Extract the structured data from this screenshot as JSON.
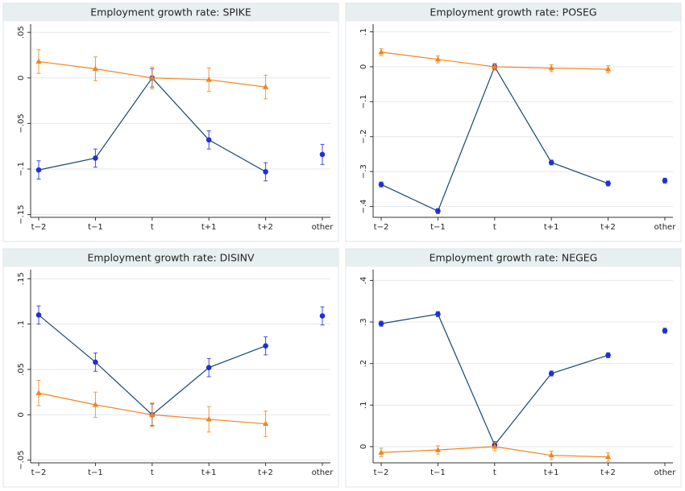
{
  "chart_data": [
    {
      "type": "line",
      "title": "Employment growth rate: SPIKE",
      "categories": [
        "t−2",
        "t−1",
        "t",
        "t+1",
        "t+2",
        "other"
      ],
      "ylim": [
        -0.153,
        0.059
      ],
      "yticks": [
        {
          "value": 0.05,
          "label": ".05"
        },
        0,
        {
          "value": -0.05,
          "label": "−.05"
        },
        {
          "value": -0.1,
          "label": "−.1"
        },
        {
          "value": -0.15,
          "label": "−.15"
        }
      ],
      "grid": true,
      "series": [
        {
          "color": "#1f2fd6",
          "line_color": "#1a476f",
          "marker": "circle",
          "line_gap_before": 5,
          "values": [
            -0.101,
            -0.088,
            0,
            -0.068,
            -0.103,
            -0.084
          ],
          "errors": [
            0.01,
            0.01,
            0.01,
            0.01,
            0.01,
            0.011
          ]
        },
        {
          "color": "#f0851c",
          "line_color": "#f0851c",
          "marker": "triangle",
          "values": [
            0.018,
            0.01,
            0,
            -0.002,
            -0.01,
            null
          ],
          "errors": [
            0.013,
            0.013,
            0.012,
            0.013,
            0.013,
            null
          ]
        }
      ]
    },
    {
      "type": "line",
      "title": "Employment growth rate: POSEG",
      "categories": [
        "t−2",
        "t−1",
        "t",
        "t+1",
        "t+2",
        "other"
      ],
      "ylim": [
        -0.431,
        0.122
      ],
      "yticks": [
        {
          "value": 0.1,
          "label": ".1"
        },
        0,
        {
          "value": -0.1,
          "label": "−.1"
        },
        {
          "value": -0.2,
          "label": "−.2"
        },
        {
          "value": -0.3,
          "label": "−.3"
        },
        {
          "value": -0.4,
          "label": "−.4"
        }
      ],
      "grid": true,
      "series": [
        {
          "color": "#1f2fd6",
          "line_color": "#1a476f",
          "marker": "circle",
          "line_gap_before": 5,
          "values": [
            -0.337,
            -0.413,
            0,
            -0.274,
            -0.334,
            -0.326
          ],
          "errors": [
            0.007,
            0.007,
            0.007,
            0.007,
            0.007,
            0.007
          ]
        },
        {
          "color": "#f0851c",
          "line_color": "#f0851c",
          "marker": "triangle",
          "values": [
            0.042,
            0.021,
            0,
            -0.004,
            -0.007,
            null
          ],
          "errors": [
            0.01,
            0.01,
            0.01,
            0.01,
            0.01,
            null
          ]
        }
      ]
    },
    {
      "type": "line",
      "title": "Employment growth rate: DISINV",
      "categories": [
        "t−2",
        "t−1",
        "t",
        "t+1",
        "t+2",
        "other"
      ],
      "ylim": [
        -0.053,
        0.16
      ],
      "yticks": [
        {
          "value": 0.15,
          "label": ".15"
        },
        {
          "value": 0.1,
          "label": ".1"
        },
        {
          "value": 0.05,
          "label": ".05"
        },
        0,
        {
          "value": -0.05,
          "label": "−.05"
        }
      ],
      "grid": true,
      "series": [
        {
          "color": "#1f2fd6",
          "line_color": "#1a476f",
          "marker": "circle",
          "line_gap_before": 5,
          "values": [
            0.11,
            0.058,
            0,
            0.052,
            0.076,
            0.109
          ],
          "errors": [
            0.01,
            0.01,
            0.012,
            0.01,
            0.01,
            0.01
          ]
        },
        {
          "color": "#f0851c",
          "line_color": "#f0851c",
          "marker": "triangle",
          "values": [
            0.024,
            0.011,
            0,
            -0.005,
            -0.01,
            null
          ],
          "errors": [
            0.014,
            0.014,
            0.013,
            0.014,
            0.014,
            null
          ]
        }
      ]
    },
    {
      "type": "line",
      "title": "Employment growth rate: NEGEG",
      "categories": [
        "t−2",
        "t−1",
        "t",
        "t+1",
        "t+2",
        "other"
      ],
      "ylim": [
        -0.039,
        0.426
      ],
      "yticks": [
        {
          "value": 0.4,
          "label": ".4"
        },
        {
          "value": 0.3,
          "label": ".3"
        },
        {
          "value": 0.2,
          "label": ".2"
        },
        {
          "value": 0.1,
          "label": ".1"
        },
        0
      ],
      "grid": true,
      "series": [
        {
          "color": "#1f2fd6",
          "line_color": "#1a476f",
          "marker": "circle",
          "line_gap_before": 5,
          "values": [
            0.296,
            0.319,
            0.004,
            0.176,
            0.22,
            0.279
          ],
          "errors": [
            0.006,
            0.006,
            0.008,
            0.006,
            0.006,
            0.006
          ]
        },
        {
          "color": "#f0851c",
          "line_color": "#f0851c",
          "marker": "triangle",
          "values": [
            -0.014,
            -0.008,
            0,
            -0.021,
            -0.025,
            null
          ],
          "errors": [
            0.01,
            0.01,
            0.01,
            0.01,
            0.01,
            null
          ]
        }
      ]
    }
  ]
}
